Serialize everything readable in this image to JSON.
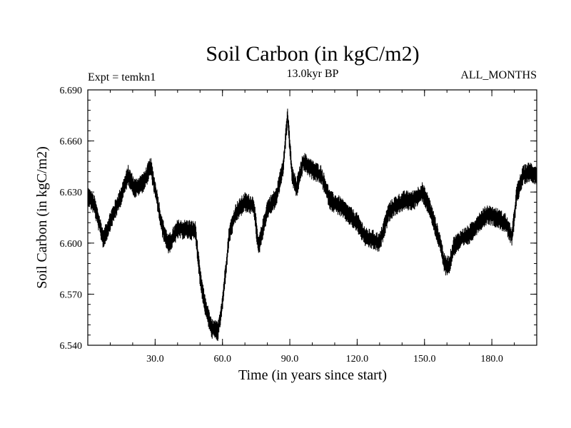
{
  "chart_data": {
    "type": "line",
    "title": "Soil Carbon (in kgC/m2)",
    "subtitle": "13.0kyr BP",
    "left_label": "Expt = temkn1",
    "right_label": "ALL_MONTHS",
    "xlabel": "Time (in years since start)",
    "ylabel": "Soil Carbon (in kgC/m2)",
    "xlim": [
      0,
      200
    ],
    "ylim": [
      6.54,
      6.69
    ],
    "xticks": [
      30,
      60,
      90,
      120,
      150,
      180
    ],
    "xtick_labels": [
      "30.0",
      "60.0",
      "90.0",
      "120.0",
      "150.0",
      "180.0"
    ],
    "yticks": [
      6.54,
      6.57,
      6.6,
      6.63,
      6.66,
      6.69
    ],
    "ytick_labels": [
      "6.540",
      "6.570",
      "6.600",
      "6.630",
      "6.660",
      "6.690"
    ],
    "line_color": "#000000",
    "noise_amplitude": 0.006,
    "series": [
      {
        "name": "Soil Carbon",
        "x": [
          0,
          3,
          7,
          10,
          14,
          18,
          21,
          25,
          28,
          31,
          33,
          36,
          40,
          45,
          48,
          50,
          52,
          55,
          58,
          60,
          63,
          66,
          70,
          74,
          76,
          80,
          84,
          87,
          89,
          91,
          93,
          96,
          100,
          104,
          108,
          112,
          116,
          120,
          124,
          127,
          130,
          134,
          137,
          141,
          145,
          149,
          152,
          157,
          159,
          161,
          163,
          166,
          170,
          174,
          178,
          182,
          186,
          189,
          191,
          194,
          197,
          200
        ],
        "values": [
          6.628,
          6.622,
          6.602,
          6.613,
          6.625,
          6.64,
          6.632,
          6.636,
          6.645,
          6.625,
          6.61,
          6.599,
          6.608,
          6.608,
          6.607,
          6.58,
          6.565,
          6.55,
          6.548,
          6.565,
          6.605,
          6.618,
          6.624,
          6.622,
          6.597,
          6.62,
          6.627,
          6.645,
          6.675,
          6.64,
          6.632,
          6.648,
          6.643,
          6.64,
          6.625,
          6.622,
          6.617,
          6.612,
          6.603,
          6.602,
          6.6,
          6.618,
          6.622,
          6.625,
          6.625,
          6.63,
          6.622,
          6.6,
          6.587,
          6.587,
          6.598,
          6.602,
          6.605,
          6.612,
          6.617,
          6.615,
          6.612,
          6.603,
          6.628,
          6.64,
          6.642,
          6.64
        ]
      }
    ]
  }
}
